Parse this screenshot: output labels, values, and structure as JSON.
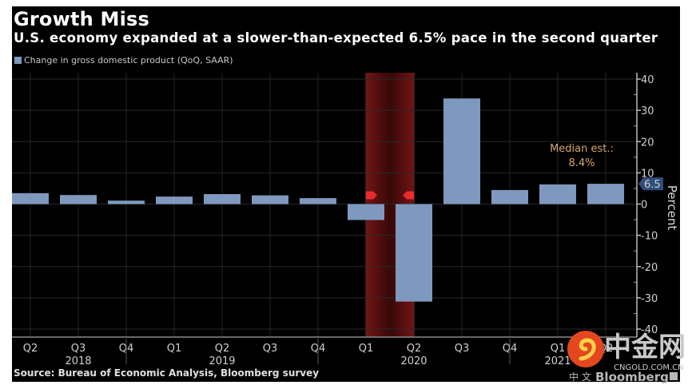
{
  "header": {
    "title": "Growth Miss",
    "subtitle": "U.S. economy expanded at a slower-than-expected 6.5% pace in the second quarter"
  },
  "legend": {
    "label": "Change in gross domestic product (QoQ, SAAR)",
    "color": "#7f98be"
  },
  "source": "Source: Bureau of Economic Analysis, Bloomberg survey",
  "colors": {
    "bar": "#7f98be",
    "recession_band": "#6e1414",
    "recession_marker": "#ff3030",
    "annotation": "#d9a66b",
    "last_value_box": "#2f4e7a"
  },
  "chart_data": {
    "type": "bar",
    "title": "Growth Miss",
    "subtitle": "U.S. economy expanded at a slower-than-expected 6.5% pace in the second quarter",
    "categories": [
      "Q2",
      "Q3",
      "Q4",
      "Q1",
      "Q2",
      "Q3",
      "Q4",
      "Q1",
      "Q2",
      "Q3",
      "Q4",
      "Q1",
      "Q2"
    ],
    "year_labels": [
      {
        "label": "2018",
        "category_index": 1
      },
      {
        "label": "2019",
        "category_index": 4
      },
      {
        "label": "2020",
        "category_index": 8
      },
      {
        "label": "2021",
        "category_index": 11
      }
    ],
    "year_separators_after_index": [
      2,
      6,
      10
    ],
    "series": [
      {
        "name": "Change in gross domestic product (QoQ, SAAR)",
        "values": [
          3.5,
          2.9,
          1.1,
          2.4,
          3.2,
          2.8,
          1.9,
          -5.1,
          -31.2,
          33.8,
          4.5,
          6.3,
          6.5
        ]
      }
    ],
    "xlabel": "",
    "ylabel": "Percent",
    "ylim": [
      -40,
      40
    ],
    "yticks": [
      40,
      30,
      20,
      10,
      0,
      -10,
      -20,
      -30,
      -40
    ],
    "y_axis_position": "right",
    "grid": true,
    "legend_position": "top-left",
    "recession_shading": {
      "from_index": 7,
      "to_index": 8
    },
    "last_value_label": "6.5",
    "annotations": [
      {
        "text_line1": "Median est.:",
        "text_line2": "8.4%",
        "category_index": 12,
        "value": 8.4
      }
    ]
  },
  "watermark": {
    "chars": "中金网",
    "url": "CNGOLD.COM.CN",
    "small_text": "中 文",
    "brand": "Bloomberg"
  }
}
